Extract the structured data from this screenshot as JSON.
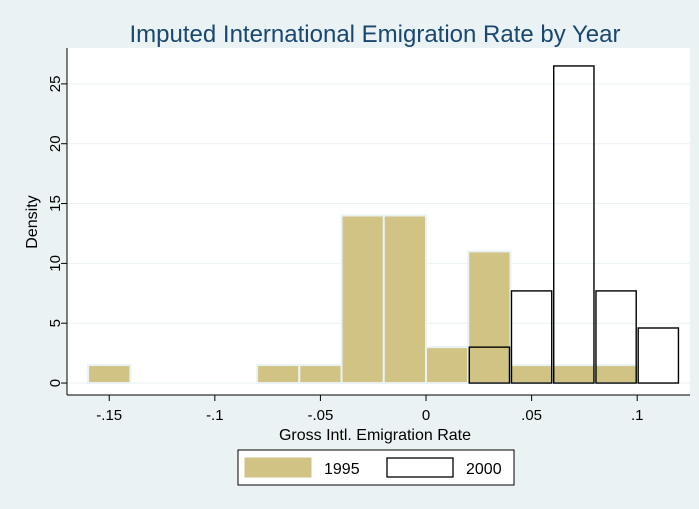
{
  "chart_data": {
    "type": "bar",
    "title": "Imputed International Emigration Rate by Year",
    "xlabel": "Gross Intl. Emigration Rate",
    "ylabel": "Density",
    "xlim": [
      -0.17,
      0.125
    ],
    "ylim": [
      -1,
      28
    ],
    "xticks": [
      -0.15,
      -0.1,
      -0.05,
      0,
      0.05,
      0.1
    ],
    "xtick_labels": [
      "-.15",
      "-.1",
      "-.05",
      "0",
      ".05",
      ".1"
    ],
    "yticks": [
      0,
      5,
      10,
      15,
      20,
      25
    ],
    "ytick_labels": [
      "0",
      "5",
      "10",
      "15",
      "20",
      "25"
    ],
    "grid": true,
    "legend_position": "bottom",
    "bin_width": 0.02,
    "series": [
      {
        "name": "1995",
        "color": "#d0c383",
        "bins": [
          {
            "start": -0.16,
            "density": 1.5
          },
          {
            "start": -0.08,
            "density": 1.5
          },
          {
            "start": -0.06,
            "density": 1.5
          },
          {
            "start": -0.04,
            "density": 14
          },
          {
            "start": -0.02,
            "density": 14
          },
          {
            "start": 0.0,
            "density": 3
          },
          {
            "start": 0.02,
            "density": 11
          },
          {
            "start": 0.04,
            "density": 1.5
          },
          {
            "start": 0.06,
            "density": 1.5
          },
          {
            "start": 0.08,
            "density": 1.5
          }
        ]
      },
      {
        "name": "2000",
        "color": "#ffffff",
        "bins": [
          {
            "start": 0.02,
            "density": 3
          },
          {
            "start": 0.04,
            "density": 7.7
          },
          {
            "start": 0.06,
            "density": 26.5
          },
          {
            "start": 0.08,
            "density": 7.7
          },
          {
            "start": 0.1,
            "density": 4.6
          }
        ]
      }
    ]
  }
}
